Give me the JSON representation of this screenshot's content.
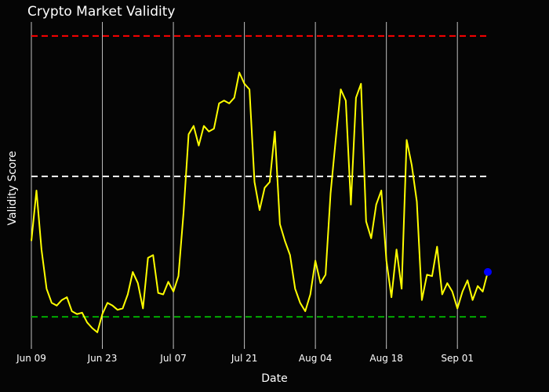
{
  "chart_data": {
    "type": "line",
    "title": "Crypto Market Validity",
    "xlabel": "Date",
    "ylabel": "Validity Score",
    "x_ticks": [
      "Jun 09",
      "Jun 23",
      "Jul 07",
      "Jul 21",
      "Aug 04",
      "Aug 18",
      "Sep 01"
    ],
    "x_tick_dates": [
      "2024-06-09",
      "2024-06-23",
      "2024-07-07",
      "2024-07-21",
      "2024-08-04",
      "2024-08-18",
      "2024-09-01"
    ],
    "grid": "vertical only",
    "legend": "none",
    "y_range": [
      -0.1,
      1.05
    ],
    "reference_lines": [
      {
        "value": 1.0,
        "color": "#ff0000",
        "style": "dashed"
      },
      {
        "value": 0.5,
        "color": "#ffffff",
        "style": "dashed"
      },
      {
        "value": 0.0,
        "color": "#00aa00",
        "style": "dashed"
      }
    ],
    "series": [
      {
        "color": "#ffff00",
        "points": [
          [
            "2024-06-09",
            0.27
          ],
          [
            "2024-06-10",
            0.45
          ],
          [
            "2024-06-11",
            0.24
          ],
          [
            "2024-06-12",
            0.1
          ],
          [
            "2024-06-13",
            0.05
          ],
          [
            "2024-06-14",
            0.04
          ],
          [
            "2024-06-15",
            0.06
          ],
          [
            "2024-06-16",
            0.07
          ],
          [
            "2024-06-17",
            0.02
          ],
          [
            "2024-06-18",
            0.01
          ],
          [
            "2024-06-19",
            0.015
          ],
          [
            "2024-06-20",
            -0.02
          ],
          [
            "2024-06-21",
            -0.04
          ],
          [
            "2024-06-22",
            -0.055
          ],
          [
            "2024-06-23",
            0.01
          ],
          [
            "2024-06-24",
            0.05
          ],
          [
            "2024-06-25",
            0.04
          ],
          [
            "2024-06-26",
            0.025
          ],
          [
            "2024-06-27",
            0.03
          ],
          [
            "2024-06-28",
            0.08
          ],
          [
            "2024-06-29",
            0.16
          ],
          [
            "2024-06-30",
            0.12
          ],
          [
            "2024-07-01",
            0.03
          ],
          [
            "2024-07-02",
            0.21
          ],
          [
            "2024-07-03",
            0.22
          ],
          [
            "2024-07-04",
            0.085
          ],
          [
            "2024-07-05",
            0.08
          ],
          [
            "2024-07-06",
            0.125
          ],
          [
            "2024-07-07",
            0.09
          ],
          [
            "2024-07-08",
            0.145
          ],
          [
            "2024-07-09",
            0.37
          ],
          [
            "2024-07-10",
            0.65
          ],
          [
            "2024-07-11",
            0.68
          ],
          [
            "2024-07-12",
            0.61
          ],
          [
            "2024-07-13",
            0.68
          ],
          [
            "2024-07-14",
            0.66
          ],
          [
            "2024-07-15",
            0.67
          ],
          [
            "2024-07-16",
            0.76
          ],
          [
            "2024-07-17",
            0.77
          ],
          [
            "2024-07-18",
            0.76
          ],
          [
            "2024-07-19",
            0.78
          ],
          [
            "2024-07-20",
            0.87
          ],
          [
            "2024-07-21",
            0.83
          ],
          [
            "2024-07-22",
            0.81
          ],
          [
            "2024-07-23",
            0.48
          ],
          [
            "2024-07-24",
            0.38
          ],
          [
            "2024-07-25",
            0.46
          ],
          [
            "2024-07-26",
            0.48
          ],
          [
            "2024-07-27",
            0.66
          ],
          [
            "2024-07-28",
            0.33
          ],
          [
            "2024-07-29",
            0.27
          ],
          [
            "2024-07-30",
            0.22
          ],
          [
            "2024-07-31",
            0.1
          ],
          [
            "2024-08-01",
            0.05
          ],
          [
            "2024-08-02",
            0.02
          ],
          [
            "2024-08-03",
            0.08
          ],
          [
            "2024-08-04",
            0.2
          ],
          [
            "2024-08-05",
            0.12
          ],
          [
            "2024-08-06",
            0.15
          ],
          [
            "2024-08-07",
            0.44
          ],
          [
            "2024-08-08",
            0.63
          ],
          [
            "2024-08-09",
            0.81
          ],
          [
            "2024-08-10",
            0.77
          ],
          [
            "2024-08-11",
            0.4
          ],
          [
            "2024-08-12",
            0.78
          ],
          [
            "2024-08-13",
            0.83
          ],
          [
            "2024-08-14",
            0.34
          ],
          [
            "2024-08-15",
            0.28
          ],
          [
            "2024-08-16",
            0.4
          ],
          [
            "2024-08-17",
            0.45
          ],
          [
            "2024-08-18",
            0.2
          ],
          [
            "2024-08-19",
            0.07
          ],
          [
            "2024-08-20",
            0.24
          ],
          [
            "2024-08-21",
            0.1
          ],
          [
            "2024-08-22",
            0.63
          ],
          [
            "2024-08-23",
            0.54
          ],
          [
            "2024-08-24",
            0.41
          ],
          [
            "2024-08-25",
            0.06
          ],
          [
            "2024-08-26",
            0.15
          ],
          [
            "2024-08-27",
            0.145
          ],
          [
            "2024-08-28",
            0.25
          ],
          [
            "2024-08-29",
            0.08
          ],
          [
            "2024-08-30",
            0.12
          ],
          [
            "2024-08-31",
            0.09
          ],
          [
            "2024-09-01",
            0.03
          ],
          [
            "2024-09-02",
            0.09
          ],
          [
            "2024-09-03",
            0.13
          ],
          [
            "2024-09-04",
            0.06
          ],
          [
            "2024-09-05",
            0.11
          ],
          [
            "2024-09-06",
            0.09
          ],
          [
            "2024-09-07",
            0.16
          ]
        ]
      }
    ],
    "last_point_marker": {
      "date": "2024-09-07",
      "value": 0.16,
      "color": "#0000ff"
    }
  }
}
